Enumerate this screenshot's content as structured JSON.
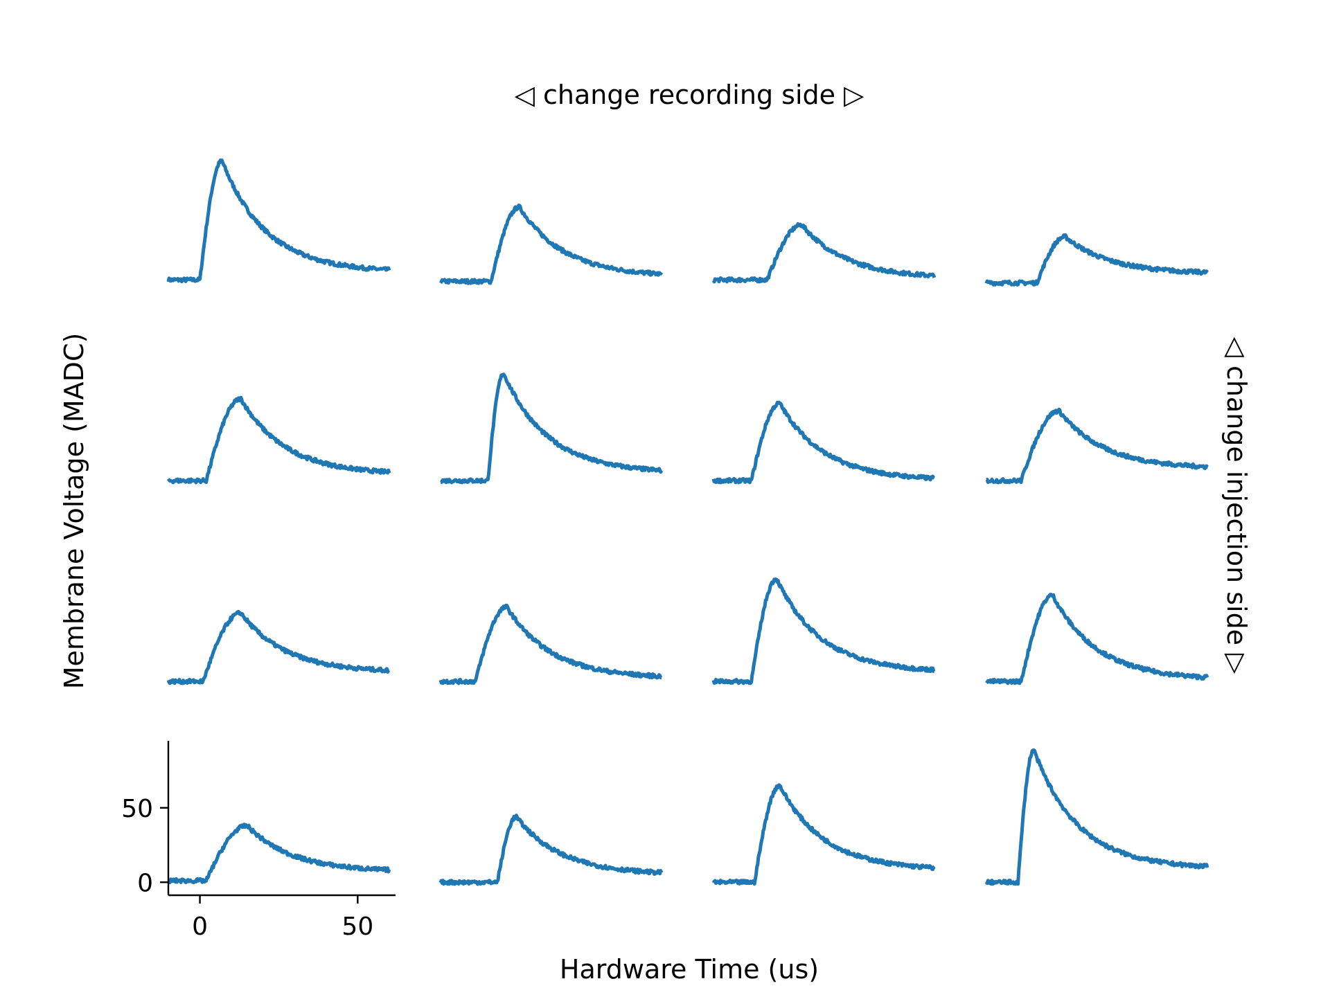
{
  "figure": {
    "top_label": "◁ change recording side ▷",
    "right_label": "◁ change injection side ▷",
    "xlabel": "Hardware Time (us)",
    "ylabel": "Membrane Voltage (MADC)",
    "line_color": "#1f77b4",
    "axis_color": "#000000"
  },
  "chart_data": {
    "type": "line",
    "grid": false,
    "xlim": [
      -10,
      62
    ],
    "ylim": [
      -5,
      95
    ],
    "xticks": [
      0,
      50
    ],
    "yticks": [
      0,
      50
    ],
    "rows": 4,
    "cols": 4,
    "axes_shown_on": "bottom-left",
    "traces": [
      {
        "row": 0,
        "col": 0,
        "baseline": 0,
        "onset": 0,
        "peak": 80,
        "t_peak": 7,
        "tail": 5
      },
      {
        "row": 0,
        "col": 1,
        "baseline": -1,
        "onset": 6,
        "peak": 49,
        "t_peak": 15,
        "tail": 2
      },
      {
        "row": 0,
        "col": 2,
        "baseline": 0,
        "onset": 7,
        "peak": 37,
        "t_peak": 18,
        "tail": 1
      },
      {
        "row": 0,
        "col": 3,
        "baseline": -2,
        "onset": 6,
        "peak": 29,
        "t_peak": 15,
        "tail": 4
      },
      {
        "row": 1,
        "col": 0,
        "baseline": 0,
        "onset": 2,
        "peak": 55,
        "t_peak": 13,
        "tail": 4
      },
      {
        "row": 1,
        "col": 1,
        "baseline": 0,
        "onset": 5,
        "peak": 72,
        "t_peak": 10,
        "tail": 5
      },
      {
        "row": 1,
        "col": 2,
        "baseline": 0,
        "onset": 2,
        "peak": 52,
        "t_peak": 11,
        "tail": 0
      },
      {
        "row": 1,
        "col": 3,
        "baseline": 0,
        "onset": 1,
        "peak": 47,
        "t_peak": 13,
        "tail": 8
      },
      {
        "row": 2,
        "col": 0,
        "baseline": 0,
        "onset": 1,
        "peak": 46,
        "t_peak": 13,
        "tail": 6
      },
      {
        "row": 2,
        "col": 1,
        "baseline": 0,
        "onset": 1,
        "peak": 50,
        "t_peak": 11,
        "tail": 2
      },
      {
        "row": 2,
        "col": 2,
        "baseline": 0,
        "onset": 2,
        "peak": 69,
        "t_peak": 10,
        "tail": 6
      },
      {
        "row": 2,
        "col": 3,
        "baseline": 0,
        "onset": 1,
        "peak": 58,
        "t_peak": 11,
        "tail": 1
      },
      {
        "row": 3,
        "col": 0,
        "baseline": 1,
        "onset": 2,
        "peak": 38,
        "t_peak": 15,
        "tail": 7
      },
      {
        "row": 3,
        "col": 1,
        "baseline": 0,
        "onset": 8,
        "peak": 44,
        "t_peak": 14,
        "tail": 5
      },
      {
        "row": 3,
        "col": 2,
        "baseline": 0,
        "onset": 3,
        "peak": 65,
        "t_peak": 11,
        "tail": 8
      },
      {
        "row": 3,
        "col": 3,
        "baseline": 0,
        "onset": 0,
        "peak": 89,
        "t_peak": 5,
        "tail": 9
      }
    ]
  }
}
